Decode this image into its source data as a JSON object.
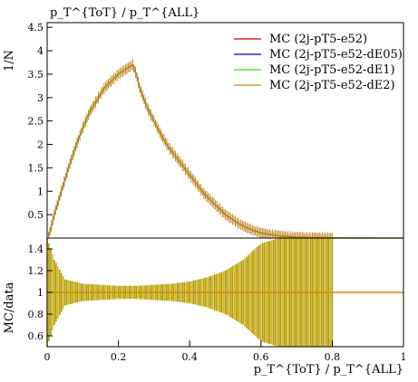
{
  "chart_data": [
    {
      "type": "line",
      "panel": "main",
      "title": "",
      "top_label": "p_T^{ToT} / p_T^{ALL}",
      "ylabel": "1/N",
      "xlim": [
        0,
        1
      ],
      "ylim": [
        0,
        4.6
      ],
      "y_ticks": [
        {
          "value": 0.5,
          "label": "0.5"
        },
        {
          "value": 1,
          "label": "1"
        },
        {
          "value": 1.5,
          "label": "1.5"
        },
        {
          "value": 2,
          "label": "2"
        },
        {
          "value": 2.5,
          "label": "2.5"
        },
        {
          "value": 3,
          "label": "3"
        },
        {
          "value": 3.5,
          "label": "3.5"
        },
        {
          "value": 4,
          "label": "4"
        },
        {
          "value": 4.5,
          "label": "4.5"
        }
      ],
      "legend_position": "top-right",
      "series": [
        {
          "name": "MC (2j-pT5-e52)",
          "color": "#cc0000"
        },
        {
          "name": "MC (2j-pT5-e52-dE05)",
          "color": "#0000cc"
        },
        {
          "name": "MC (2j-pT5-e52-dE1)",
          "color": "#33dd33"
        },
        {
          "name": "MC (2j-pT5-e52-dE2)",
          "color": "#d08a00"
        }
      ],
      "x": [
        0.005,
        0.02,
        0.04,
        0.06,
        0.08,
        0.1,
        0.12,
        0.14,
        0.16,
        0.18,
        0.2,
        0.22,
        0.24,
        0.25,
        0.26,
        0.28,
        0.3,
        0.32,
        0.34,
        0.36,
        0.38,
        0.4,
        0.42,
        0.44,
        0.46,
        0.48,
        0.5,
        0.52,
        0.54,
        0.56,
        0.58,
        0.6,
        0.62,
        0.64,
        0.66,
        0.68,
        0.7,
        0.72,
        0.74,
        0.76,
        0.78,
        0.8,
        0.85,
        0.9,
        0.95,
        1.0
      ],
      "y": [
        0.05,
        0.5,
        1.0,
        1.5,
        1.95,
        2.35,
        2.7,
        2.95,
        3.2,
        3.35,
        3.5,
        3.6,
        3.7,
        3.5,
        3.2,
        2.8,
        2.5,
        2.2,
        1.95,
        1.75,
        1.55,
        1.35,
        1.15,
        0.95,
        0.8,
        0.65,
        0.5,
        0.4,
        0.3,
        0.22,
        0.16,
        0.11,
        0.08,
        0.06,
        0.04,
        0.03,
        0.02,
        0.015,
        0.01,
        0.008,
        0.005,
        0.003,
        0.002,
        0.001,
        0.0,
        0.0
      ],
      "line_color": "#a38a2a"
    },
    {
      "type": "area",
      "panel": "ratio",
      "ylabel": "MC/data",
      "xlabel": "p_T^{ToT} / p_T^{ALL}",
      "xlim": [
        0,
        1
      ],
      "ylim": [
        0.5,
        1.5
      ],
      "y_ticks": [
        {
          "value": 0.6,
          "label": "0.6"
        },
        {
          "value": 0.8,
          "label": "0.8"
        },
        {
          "value": 1,
          "label": "1"
        },
        {
          "value": 1.2,
          "label": "1.2"
        },
        {
          "value": 1.4,
          "label": "1.4"
        }
      ],
      "x_ticks": [
        {
          "value": 0,
          "label": "0"
        },
        {
          "value": 0.2,
          "label": "0.2"
        },
        {
          "value": 0.4,
          "label": "0.4"
        },
        {
          "value": 0.6,
          "label": "0.6"
        },
        {
          "value": 0.8,
          "label": "0.8"
        },
        {
          "value": 1,
          "label": "1"
        }
      ],
      "reference_value": 1.0,
      "x": [
        0.0,
        0.02,
        0.05,
        0.1,
        0.15,
        0.2,
        0.25,
        0.3,
        0.35,
        0.4,
        0.45,
        0.5,
        0.55,
        0.6,
        0.65,
        0.7,
        0.75,
        0.8
      ],
      "band_upper": [
        1.5,
        1.3,
        1.12,
        1.08,
        1.07,
        1.06,
        1.06,
        1.07,
        1.08,
        1.1,
        1.14,
        1.2,
        1.3,
        1.45,
        1.5,
        1.5,
        1.5,
        1.5
      ],
      "band_lower": [
        0.5,
        0.7,
        0.88,
        0.92,
        0.93,
        0.94,
        0.94,
        0.93,
        0.92,
        0.9,
        0.86,
        0.8,
        0.7,
        0.55,
        0.5,
        0.5,
        0.5,
        0.5
      ],
      "band_color": "#a89a10",
      "line_color": "#d08a00"
    }
  ]
}
